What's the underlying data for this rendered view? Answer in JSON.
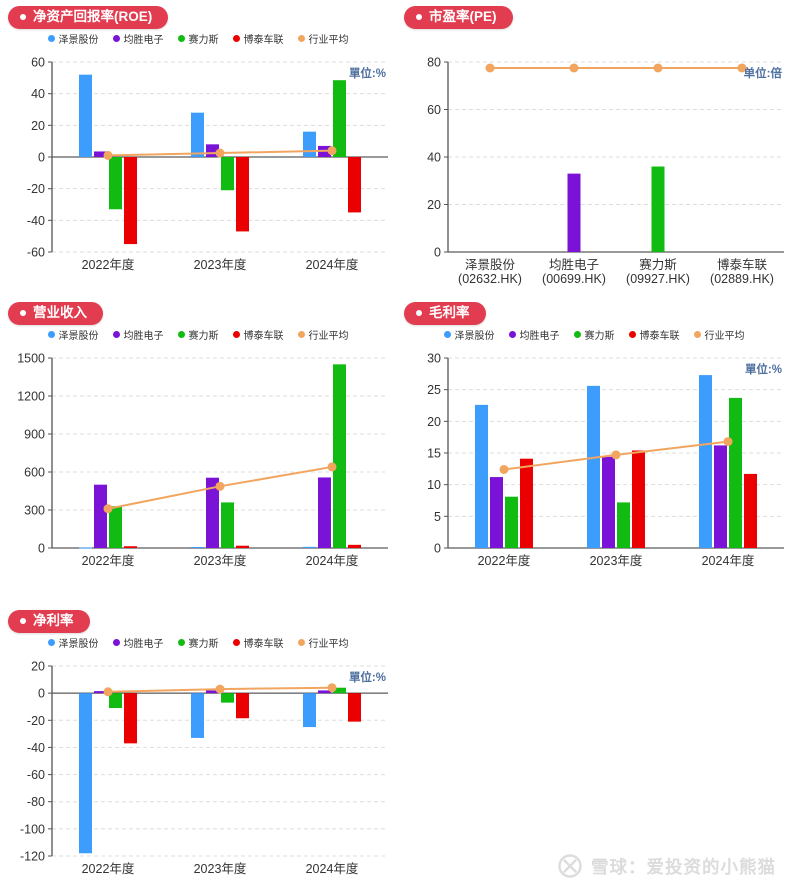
{
  "watermark": {
    "logo": "xueqiu-x-logo",
    "text": "雪球：爱投资的小熊猫"
  },
  "chart_data": [
    {
      "type": "grouped-bar-line",
      "title": "净资产回报率(ROE)",
      "unit": "單位:%",
      "categories": [
        "2022年度",
        "2023年度",
        "2024年度"
      ],
      "series": [
        {
          "name": "泽景股份",
          "type": "bar",
          "color": "#3D9DFC",
          "values": [
            52,
            28,
            16
          ]
        },
        {
          "name": "均胜电子",
          "type": "bar",
          "color": "#7A13D6",
          "values": [
            3.5,
            8,
            7
          ]
        },
        {
          "name": "赛力斯",
          "type": "bar",
          "color": "#11BB11",
          "values": [
            -33,
            -21,
            48.5
          ]
        },
        {
          "name": "博泰车联",
          "type": "bar",
          "color": "#EA0000",
          "values": [
            -55,
            -47,
            -35
          ]
        },
        {
          "name": "行业平均",
          "type": "line",
          "color": "#F2A55F",
          "values": [
            1,
            2.5,
            4
          ]
        }
      ],
      "ylim": [
        -60,
        60
      ],
      "ytick_step": 20,
      "grid": "dashed",
      "legend_position": "top"
    },
    {
      "type": "bar-line",
      "title": "市盈率(PE)",
      "unit": "单位:倍",
      "legend": false,
      "categories": [
        "泽景股份\n(02632.HK)",
        "均胜电子\n(00699.HK)",
        "赛力斯\n(09927.HK)",
        "博泰车联\n(02889.HK)"
      ],
      "series": [
        {
          "name": "市盈率",
          "type": "bar",
          "colors": [
            "#3D9DFC",
            "#7A13D6",
            "#11BB11",
            "#EA0000"
          ],
          "values": [
            null,
            33,
            36,
            null
          ]
        },
        {
          "name": "行业平均",
          "type": "line",
          "color": "#F2A55F",
          "values": [
            77.5,
            77.5,
            77.5,
            77.5
          ]
        }
      ],
      "ylim": [
        0,
        80
      ],
      "ytick_step": 20,
      "grid": "dashed",
      "legend_position": "none"
    },
    {
      "type": "grouped-bar-line",
      "title": "营业收入",
      "unit": "",
      "categories": [
        "2022年度",
        "2023年度",
        "2024年度"
      ],
      "series": [
        {
          "name": "泽景股份",
          "type": "bar",
          "color": "#3D9DFC",
          "values": [
            3,
            8,
            9
          ]
        },
        {
          "name": "均胜电子",
          "type": "bar",
          "color": "#7A13D6",
          "values": [
            500,
            555,
            557
          ]
        },
        {
          "name": "赛力斯",
          "type": "bar",
          "color": "#11BB11",
          "values": [
            330,
            360,
            1450
          ]
        },
        {
          "name": "博泰车联",
          "type": "bar",
          "color": "#EA0000",
          "values": [
            14,
            18,
            25
          ]
        },
        {
          "name": "行业平均",
          "type": "line",
          "color": "#F2A55F",
          "values": [
            310,
            487,
            640
          ]
        }
      ],
      "ylim": [
        0,
        1500
      ],
      "ytick_step": 300,
      "grid": "dashed",
      "legend_position": "top"
    },
    {
      "type": "grouped-bar-line",
      "title": "毛利率",
      "unit": "單位:%",
      "categories": [
        "2022年度",
        "2023年度",
        "2024年度"
      ],
      "series": [
        {
          "name": "泽景股份",
          "type": "bar",
          "color": "#3D9DFC",
          "values": [
            22.6,
            25.6,
            27.3
          ]
        },
        {
          "name": "均胜电子",
          "type": "bar",
          "color": "#7A13D6",
          "values": [
            11.2,
            14.4,
            16.2
          ]
        },
        {
          "name": "赛力斯",
          "type": "bar",
          "color": "#11BB11",
          "values": [
            8.1,
            7.2,
            23.7
          ]
        },
        {
          "name": "博泰车联",
          "type": "bar",
          "color": "#EA0000",
          "values": [
            14.1,
            15.4,
            11.7
          ]
        },
        {
          "name": "行业平均",
          "type": "line",
          "color": "#F2A55F",
          "values": [
            12.4,
            14.7,
            16.8
          ]
        }
      ],
      "ylim": [
        0,
        30
      ],
      "ytick_step": 5,
      "grid": "dashed",
      "legend_position": "top"
    },
    {
      "type": "grouped-bar-line",
      "title": "净利率",
      "unit": "單位:%",
      "categories": [
        "2022年度",
        "2023年度",
        "2024年度"
      ],
      "series": [
        {
          "name": "泽景股份",
          "type": "bar",
          "color": "#3D9DFC",
          "values": [
            -118,
            -33,
            -25
          ]
        },
        {
          "name": "均胜电子",
          "type": "bar",
          "color": "#7A13D6",
          "values": [
            1.5,
            2,
            2
          ]
        },
        {
          "name": "赛力斯",
          "type": "bar",
          "color": "#11BB11",
          "values": [
            -11,
            -7,
            4
          ]
        },
        {
          "name": "博泰车联",
          "type": "bar",
          "color": "#EA0000",
          "values": [
            -37,
            -18.5,
            -21
          ]
        },
        {
          "name": "行业平均",
          "type": "line",
          "color": "#F2A55F",
          "values": [
            1,
            3,
            4
          ]
        }
      ],
      "ylim": [
        -120,
        20
      ],
      "ytick_step": 20,
      "grid": "dashed",
      "legend_position": "top"
    }
  ],
  "colors": {
    "pill_background": "#E23C50",
    "unit_label": "#4E6F9F",
    "axis": "#555555",
    "gridline": "#DDDDDD",
    "tick_text": "#333333",
    "watermark": "#DCDCDC"
  }
}
